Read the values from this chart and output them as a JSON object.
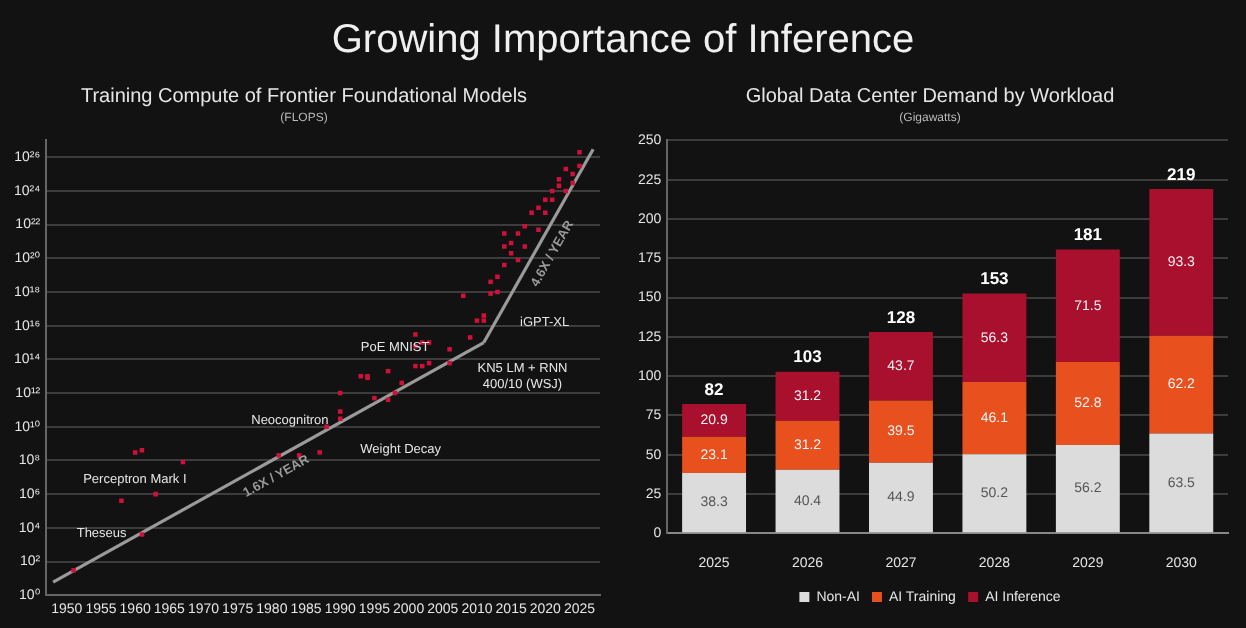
{
  "chart_data": [
    {
      "type": "scatter",
      "title": "Training Compute of Frontier Foundational Models",
      "subtitle": "(FLOPS)",
      "log": "y",
      "grid": "y",
      "legend": false,
      "xlim": [
        1947,
        2028
      ],
      "xticks": [
        1950,
        1955,
        1960,
        1965,
        1970,
        1975,
        1980,
        1985,
        1990,
        1995,
        2000,
        2005,
        2010,
        2015,
        2020,
        2025
      ],
      "ylim": [
        1,
        1e+27
      ],
      "yticks": [
        {
          "value": 1,
          "label": "10⁰"
        },
        {
          "value": 100.0,
          "label": "10²"
        },
        {
          "value": 10000.0,
          "label": "10⁴"
        },
        {
          "value": 1000000.0,
          "label": "10⁶"
        },
        {
          "value": 100000000.0,
          "label": "10⁸"
        },
        {
          "value": 10000000000.0,
          "label": "10¹⁰"
        },
        {
          "value": 1000000000000.0,
          "label": "10¹²"
        },
        {
          "value": 100000000000000.0,
          "label": "10¹⁴"
        },
        {
          "value": 1e+16,
          "label": "10¹⁶"
        },
        {
          "value": 1e+18,
          "label": "10¹⁸"
        },
        {
          "value": 1e+20,
          "label": "10²⁰"
        },
        {
          "value": 1e+22,
          "label": "10²²"
        },
        {
          "value": 1e+24,
          "label": "10²⁴"
        },
        {
          "value": 1e+26,
          "label": "10²⁶"
        }
      ],
      "series": [
        {
          "type": "scatter",
          "marker": "square",
          "color": "#d0103a",
          "x": [
            1951,
            1958,
            1960,
            1961,
            1961,
            1963,
            1967,
            1981,
            1984,
            1987,
            1988,
            1990,
            1990,
            1990,
            1993,
            1994,
            1994,
            1995,
            1997,
            1997,
            1998,
            1999,
            2001,
            2001,
            2002,
            2001,
            2002,
            2003,
            2003,
            2006,
            2006,
            2008,
            2009,
            2010,
            2011,
            2011,
            2012,
            2012,
            2013,
            2013,
            2014,
            2014,
            2015,
            2014,
            2015,
            2016,
            2016,
            2017,
            2017,
            2018,
            2019,
            2019,
            2020,
            2020,
            2021,
            2021,
            2022,
            2022,
            2023,
            2023,
            2024,
            2024,
            2025,
            2025
          ],
          "values": [
            30.0,
            400000.0,
            300000000.0,
            400000000.0,
            4000.0,
            1000000.0,
            80000000.0,
            200000000.0,
            200000000.0,
            300000000.0,
            10000000000.0,
            1000000000000.0,
            80000000000.0,
            30000000000.0,
            10000000000000.0,
            8000000000000.0,
            10000000000000.0,
            500000000000.0,
            400000000000.0,
            20000000000000.0,
            1000000000000.0,
            4000000000000.0,
            3000000000000000.0,
            40000000000000.0,
            40000000000000.0,
            600000000000000.0,
            1000000000000000.0,
            1000000000000000.0,
            60000000000000.0,
            60000000000000.0,
            400000000000000.0,
            6e+17,
            2000000000000000.0,
            2e+16,
            4e+16,
            2e+16,
            8e+17,
            4e+18,
            1e+18,
            8e+18,
            4e+19,
            5e+20,
            2e+20,
            3e+21,
            8e+20,
            8e+19,
            3e+21,
            5e+20,
            8e+21,
            5e+22,
            5e+21,
            1e+23,
            3e+23,
            5e+22,
            1e+24,
            3e+23,
            2e+24,
            5e+24,
            1e+24,
            2e+25,
            3e+24,
            1e+25,
            3e+25,
            2e+26
          ]
        },
        {
          "type": "line",
          "marker": "none",
          "name": "1.6X / YEAR",
          "color": "#9a9a9a",
          "x": [
            1948,
            2011
          ],
          "values": [
            6,
            1000000000000000.0
          ]
        },
        {
          "type": "line",
          "marker": "none",
          "name": "4.6X / YEAR",
          "color": "#9a9a9a",
          "x": [
            2011,
            2027
          ],
          "values": [
            1000000000000000.0,
            3e+26
          ]
        }
      ],
      "annotations": [
        "Growing Importance of Inference",
        "Theseus",
        "Perceptron Mark I",
        "Neocognitron",
        "Weight Decay",
        "PoE MNIST",
        "iGPT-XL",
        "KN5 LM + RNN 400/10 (WSJ)"
      ]
    },
    {
      "type": "bar",
      "title": "Global Data Center Demand by Workload",
      "subtitle": "(Gigawatts)",
      "stacked": true,
      "data_labels": true,
      "grid": "y",
      "legend": "bottom",
      "categories": [
        "2025",
        "2026",
        "2027",
        "2028",
        "2029",
        "2030"
      ],
      "ylim": [
        0,
        250
      ],
      "yticks": [
        0,
        25,
        50,
        75,
        100,
        125,
        150,
        175,
        200,
        225,
        250
      ],
      "series": [
        {
          "name": "Non-AI",
          "color": "#dcdcdc",
          "values": [
            38.3,
            40.4,
            44.9,
            50.2,
            56.2,
            63.5
          ]
        },
        {
          "name": "AI Training",
          "color": "#e8501e",
          "values": [
            23.1,
            31.2,
            39.5,
            46.1,
            52.8,
            62.2
          ]
        },
        {
          "name": "AI Inference",
          "color": "#a8102e",
          "values": [
            20.9,
            31.2,
            43.7,
            56.3,
            71.5,
            93.3
          ]
        }
      ],
      "totals": [
        "82",
        "103",
        "128",
        "153",
        "181",
        "219"
      ]
    }
  ]
}
